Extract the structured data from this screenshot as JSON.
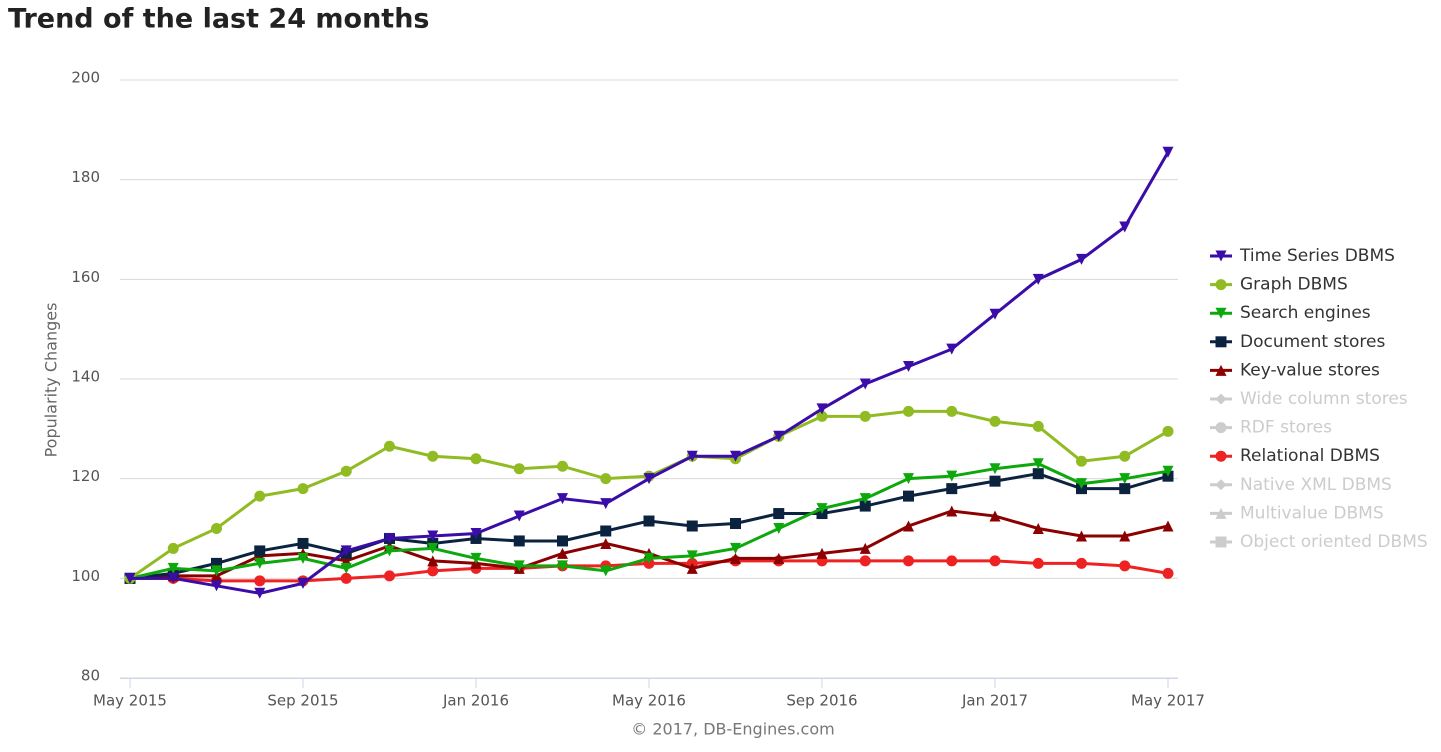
{
  "chart_data": {
    "type": "line",
    "title": "Trend of the last 24 months",
    "y_label": "Popularity Changes",
    "credits": "© 2017, DB-Engines.com",
    "categories": [
      "May 2015",
      null,
      null,
      null,
      "Sep 2015",
      null,
      null,
      null,
      "Jan 2016",
      null,
      null,
      null,
      "May 2016",
      null,
      null,
      null,
      "Sep 2016",
      null,
      null,
      null,
      "Jan 2017",
      null,
      null,
      null,
      "May 2017"
    ],
    "ylim": [
      80,
      200
    ],
    "yticks": [
      80,
      100,
      120,
      140,
      160,
      180,
      200
    ],
    "grid": true,
    "legend": "right",
    "series": [
      {
        "name": "Time Series DBMS",
        "color": "#3a0ca8",
        "marker": "triangle-down",
        "visible": true,
        "values": [
          100,
          100,
          98.5,
          97,
          99,
          105.5,
          108,
          108.5,
          109,
          112.5,
          116,
          115,
          120,
          124.5,
          124.5,
          128.5,
          134,
          139,
          142.5,
          146,
          153,
          160,
          164,
          170.5,
          185.5
        ]
      },
      {
        "name": "Graph DBMS",
        "color": "#90bb22",
        "marker": "circle",
        "visible": true,
        "values": [
          100,
          106,
          110,
          116.5,
          118,
          121.5,
          126.5,
          124.5,
          124,
          122,
          122.5,
          120,
          120.5,
          124.5,
          124,
          128.5,
          132.5,
          132.5,
          133.5,
          133.5,
          131.5,
          130.5,
          123.5,
          124.5,
          129.5
        ]
      },
      {
        "name": "Search engines",
        "color": "#0ca80c",
        "marker": "triangle-down",
        "visible": true,
        "values": [
          100,
          102,
          101.5,
          103,
          104,
          102,
          105.5,
          106,
          104,
          102.5,
          102.5,
          101.5,
          104,
          104.5,
          106,
          110,
          114,
          116,
          120,
          120.5,
          122,
          123,
          119,
          120,
          121.5
        ]
      },
      {
        "name": "Document stores",
        "color": "#0c2340",
        "marker": "square",
        "visible": true,
        "values": [
          100,
          101,
          103,
          105.5,
          107,
          105,
          108,
          107,
          108,
          107.5,
          107.5,
          109.5,
          111.5,
          110.5,
          111,
          113,
          113,
          114.5,
          116.5,
          118,
          119.5,
          121,
          118,
          118,
          120.5
        ]
      },
      {
        "name": "Key-value stores",
        "color": "#8b0000",
        "marker": "triangle",
        "visible": true,
        "values": [
          100,
          100.5,
          100.5,
          104.5,
          105,
          103.5,
          106.5,
          103.5,
          103,
          102,
          105,
          107,
          105,
          102,
          104,
          104,
          105,
          106,
          110.5,
          113.5,
          112.5,
          110,
          108.5,
          108.5,
          110.5
        ]
      },
      {
        "name": "Wide column stores",
        "color": "#cccccc",
        "marker": "diamond",
        "visible": false
      },
      {
        "name": "RDF stores",
        "color": "#cccccc",
        "marker": "circle",
        "visible": false
      },
      {
        "name": "Relational DBMS",
        "color": "#ee2222",
        "marker": "circle",
        "visible": true,
        "values": [
          100,
          100,
          99.5,
          99.5,
          99.5,
          100,
          100.5,
          101.5,
          102,
          102,
          102.5,
          102.5,
          103,
          103,
          103.5,
          103.5,
          103.5,
          103.5,
          103.5,
          103.5,
          103.5,
          103,
          103,
          102.5,
          101
        ]
      },
      {
        "name": "Native XML DBMS",
        "color": "#cccccc",
        "marker": "diamond",
        "visible": false
      },
      {
        "name": "Multivalue DBMS",
        "color": "#cccccc",
        "marker": "triangle",
        "visible": false
      },
      {
        "name": "Object oriented DBMS",
        "color": "#cccccc",
        "marker": "square",
        "visible": false
      }
    ]
  }
}
